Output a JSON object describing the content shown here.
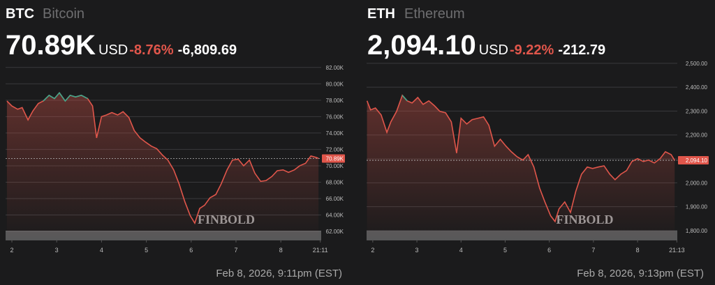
{
  "chart_data": [
    {
      "type": "line",
      "symbol": "BTC",
      "name": "Bitcoin",
      "last": {
        "value": 70890,
        "label": "70.89K"
      },
      "currency": "USD",
      "change_pct": {
        "value": -8.76,
        "label": "-8.76%"
      },
      "change": {
        "value": -6809.69,
        "label": "-6,809.69"
      },
      "timestamp": "Feb 8, 2026, 9:11pm (EST)",
      "watermark": "FINBOLD",
      "color": "#e0564b",
      "up_color": "#3fa68b",
      "grid": true,
      "xlim": [
        1.86,
        8.9
      ],
      "ylim": [
        60900,
        83000
      ],
      "xticks": [
        2,
        3,
        4,
        5,
        6,
        7,
        8,
        {
          "value": 8.88,
          "label": "21:11"
        }
      ],
      "yticks": [
        {
          "value": 62000,
          "label": "62.00K"
        },
        {
          "value": 64000,
          "label": "64.00K"
        },
        {
          "value": 66000,
          "label": "66.00K"
        },
        {
          "value": 68000,
          "label": "68.00K"
        },
        {
          "value": 70000,
          "label": "70.00K"
        },
        {
          "value": 72000,
          "label": "72.00K"
        },
        {
          "value": 74000,
          "label": "74.00K"
        },
        {
          "value": 76000,
          "label": "76.00K"
        },
        {
          "value": 78000,
          "label": "78.00K"
        },
        {
          "value": 80000,
          "label": "80.00K"
        },
        {
          "value": 82000,
          "label": "82.00K"
        }
      ],
      "x": [
        1.89,
        2.0,
        2.13,
        2.23,
        2.36,
        2.47,
        2.59,
        2.7,
        2.83,
        2.95,
        3.06,
        3.19,
        3.3,
        3.42,
        3.55,
        3.69,
        3.8,
        3.89,
        4.0,
        4.11,
        4.23,
        4.36,
        4.48,
        4.61,
        4.73,
        4.86,
        4.98,
        5.11,
        5.23,
        5.36,
        5.48,
        5.61,
        5.73,
        5.86,
        5.98,
        6.08,
        6.19,
        6.3,
        6.42,
        6.55,
        6.67,
        6.8,
        6.92,
        7.05,
        7.17,
        7.3,
        7.42,
        7.55,
        7.67,
        7.8,
        7.92,
        8.05,
        8.17,
        8.3,
        8.42,
        8.55,
        8.67,
        8.8,
        8.84
      ],
      "values": [
        77900,
        77300,
        76900,
        77100,
        75600,
        76700,
        77600,
        77900,
        78600,
        78200,
        78900,
        77900,
        78600,
        78400,
        78600,
        78200,
        77300,
        73400,
        76000,
        76200,
        76500,
        76200,
        76600,
        75900,
        74300,
        73400,
        72900,
        72400,
        72100,
        71300,
        70700,
        69500,
        67800,
        65600,
        63900,
        63000,
        64800,
        65200,
        66100,
        66500,
        67800,
        69500,
        70700,
        70800,
        70000,
        70700,
        69100,
        68100,
        68200,
        68700,
        69400,
        69500,
        69200,
        69500,
        70000,
        70300,
        71200,
        71000,
        70890
      ]
    },
    {
      "type": "line",
      "symbol": "ETH",
      "name": "Ethereum",
      "last": {
        "value": 2094.1,
        "label": "2,094.10"
      },
      "currency": "USD",
      "change_pct": {
        "value": -9.22,
        "label": "-9.22%"
      },
      "change": {
        "value": -212.79,
        "label": "-212.79"
      },
      "timestamp": "Feb 8, 2026, 9:13pm (EST)",
      "watermark": "FINBOLD",
      "color": "#e0564b",
      "up_color": "#3fa68b",
      "grid": true,
      "xlim": [
        1.86,
        8.9
      ],
      "ylim": [
        1759,
        2517
      ],
      "xticks": [
        2,
        3,
        4,
        5,
        6,
        7,
        8,
        {
          "value": 8.89,
          "label": "21:13"
        }
      ],
      "yticks": [
        {
          "value": 1800,
          "label": "1,800.00"
        },
        {
          "value": 1900,
          "label": "1,900.00"
        },
        {
          "value": 2000,
          "label": "2,000.00"
        },
        {
          "value": 2100,
          "label": "2,100.00"
        },
        {
          "value": 2200,
          "label": "2,200.00"
        },
        {
          "value": 2300,
          "label": "2,300.00"
        },
        {
          "value": 2400,
          "label": "2,400.00"
        },
        {
          "value": 2500,
          "label": "2,500.00"
        }
      ],
      "x": [
        1.87,
        1.95,
        2.06,
        2.19,
        2.32,
        2.41,
        2.54,
        2.67,
        2.78,
        2.89,
        3.02,
        3.14,
        3.27,
        3.4,
        3.52,
        3.65,
        3.78,
        3.9,
        4.0,
        4.13,
        4.25,
        4.38,
        4.51,
        4.63,
        4.76,
        4.89,
        5.02,
        5.14,
        5.27,
        5.4,
        5.52,
        5.65,
        5.78,
        5.9,
        6.03,
        6.13,
        6.22,
        6.35,
        6.48,
        6.6,
        6.73,
        6.86,
        6.98,
        7.11,
        7.24,
        7.37,
        7.49,
        7.62,
        7.75,
        7.87,
        8.0,
        8.13,
        8.25,
        8.38,
        8.51,
        8.63,
        8.76,
        8.84
      ],
      "values": [
        2343,
        2305,
        2313,
        2284,
        2211,
        2255,
        2299,
        2366,
        2343,
        2334,
        2357,
        2328,
        2343,
        2322,
        2299,
        2293,
        2255,
        2124,
        2270,
        2246,
        2264,
        2270,
        2276,
        2241,
        2153,
        2182,
        2153,
        2130,
        2109,
        2095,
        2118,
        2066,
        1978,
        1920,
        1862,
        1838,
        1891,
        1920,
        1876,
        1964,
        2036,
        2066,
        2060,
        2066,
        2071,
        2036,
        2013,
        2036,
        2051,
        2089,
        2101,
        2089,
        2095,
        2083,
        2101,
        2130,
        2118,
        2094.1
      ]
    }
  ]
}
